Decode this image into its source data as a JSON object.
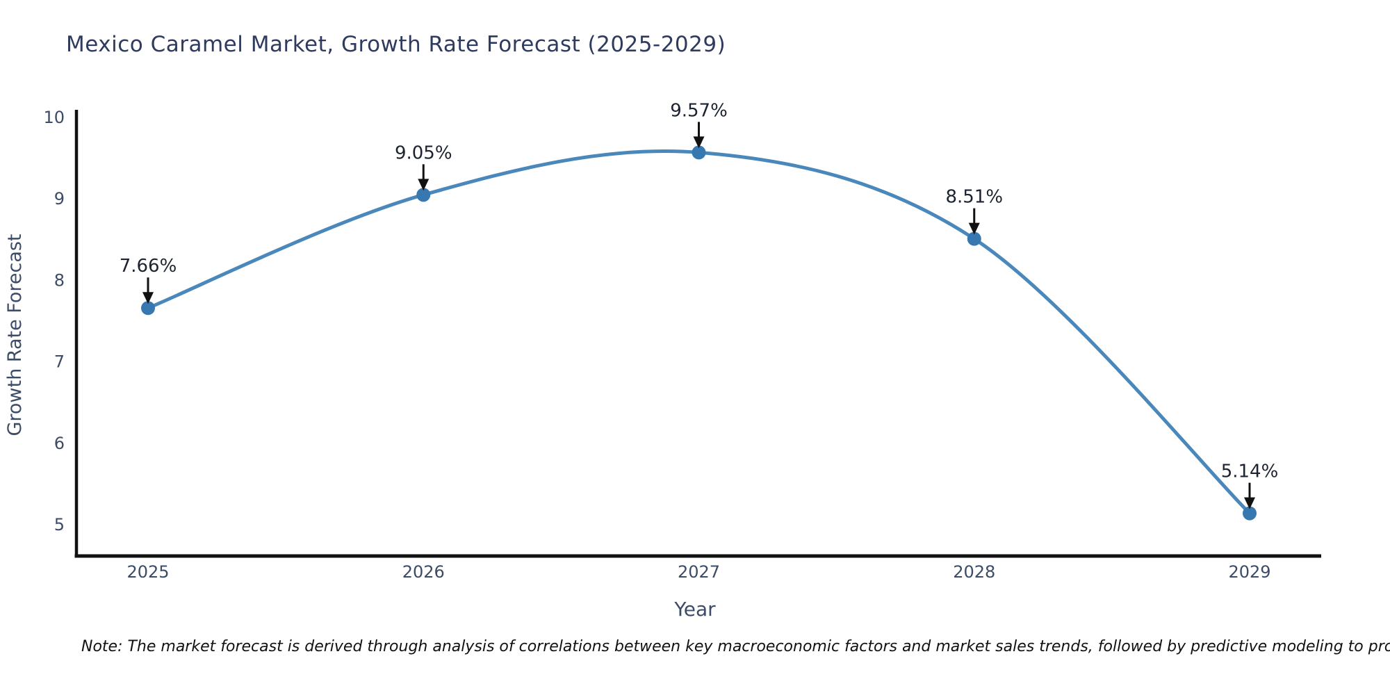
{
  "chart_data": {
    "type": "line",
    "title": "Mexico Caramel Market, Growth Rate Forecast (2025-2029)",
    "xlabel": "Year",
    "ylabel": "Growth Rate Forecast",
    "x": [
      2025,
      2026,
      2027,
      2028,
      2029
    ],
    "values": [
      7.66,
      9.05,
      9.57,
      8.51,
      5.14
    ],
    "point_labels": [
      "7.66%",
      "9.05%",
      "9.57%",
      "8.51%",
      "5.14%"
    ],
    "ylim": [
      5,
      10
    ],
    "ytick_values": [
      5,
      6,
      7,
      8,
      9,
      10
    ],
    "grid": false,
    "legend_position": "none",
    "colors": {
      "line": "#4a88bb",
      "marker": "#3878b0",
      "axis": "#111111",
      "tick_labels": "#3c4b66",
      "axis_titles": "#3c4b66",
      "annotation_text": "#1c2330",
      "annotation_arrow": "#111111",
      "title": "#2e3b5e",
      "background": "#ffffff"
    }
  },
  "note": "Note: The market forecast is derived through analysis of correlations between key macroeconomic factors and market sales trends, followed by predictive modeling to project future sales"
}
